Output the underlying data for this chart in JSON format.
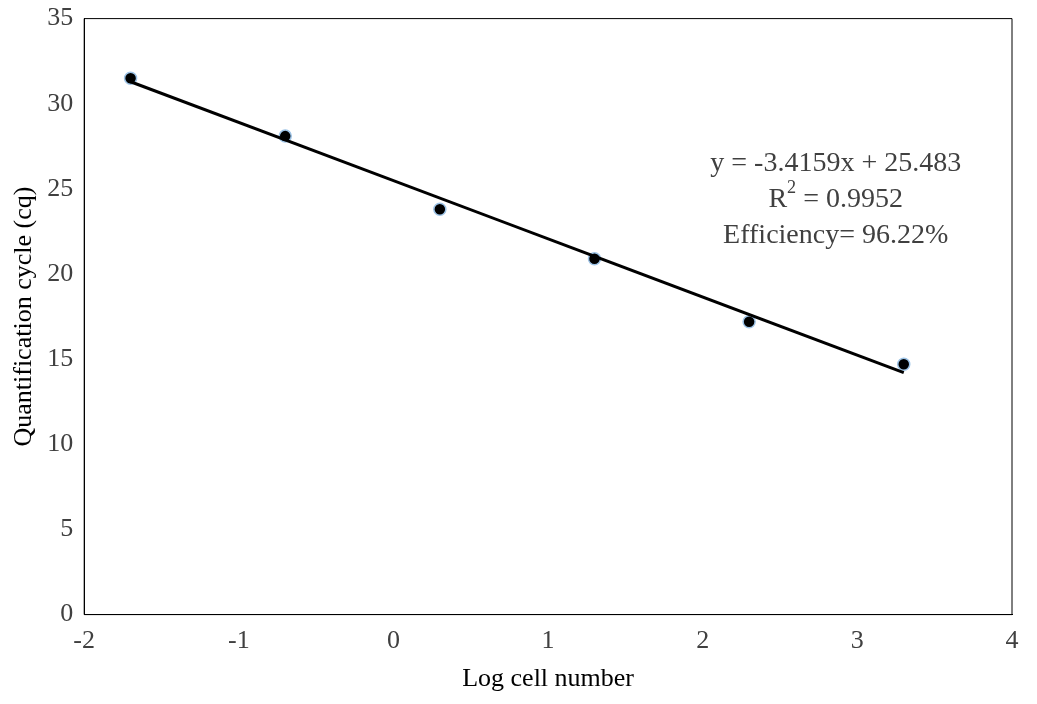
{
  "chart_data": {
    "type": "scatter",
    "xlabel": "Log cell number",
    "ylabel": "Quantification cycle (cq)",
    "xlim": [
      -2,
      4
    ],
    "xticks": [
      -2,
      -1,
      0,
      1,
      2,
      3,
      4
    ],
    "ylim": [
      0,
      35
    ],
    "yticks": [
      0,
      5,
      10,
      15,
      20,
      25,
      30,
      35
    ],
    "grid": false,
    "legend": false,
    "marker": "circle",
    "series": [
      {
        "color": "#000000",
        "x": [
          -1.7,
          -0.7,
          0.3,
          1.3,
          2.3,
          3.3
        ],
        "values": [
          31.5,
          28.1,
          23.8,
          20.9,
          17.2,
          14.7
        ]
      },
      {
        "type": "line",
        "color": "#000000",
        "x": [
          -1.7,
          3.3
        ],
        "values": [
          31.29,
          14.21
        ],
        "line_style": "solid",
        "marker": "none"
      }
    ],
    "annotations": [
      "y = -3.4159x + 25.483",
      "R$^{2}$ = 0.9952",
      "Efficiency= 96.22%"
    ]
  }
}
